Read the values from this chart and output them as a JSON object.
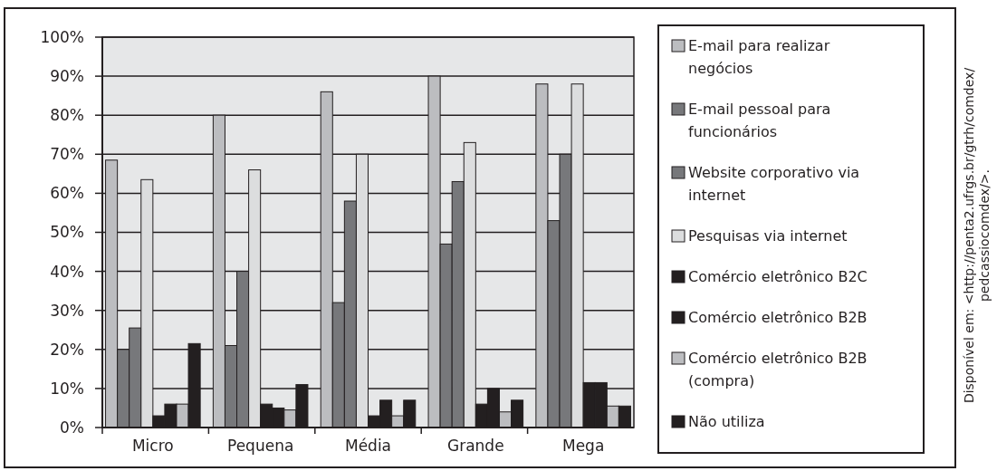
{
  "chart_data": {
    "type": "bar",
    "categories": [
      "Micro",
      "Pequena",
      "Média",
      "Grande",
      "Mega"
    ],
    "series": [
      {
        "name": "E-mail para realizar negócios",
        "color": "#bcbdc0",
        "values": [
          68.5,
          80,
          86,
          90,
          88
        ]
      },
      {
        "name": "E-mail pessoal para funcionários",
        "color": "#77787b",
        "values": [
          20,
          21,
          32,
          47,
          53
        ]
      },
      {
        "name": "Website corporativo via internet",
        "color": "#77787b",
        "values": [
          25.5,
          40,
          58,
          63,
          70
        ]
      },
      {
        "name": "Pesquisas via internet",
        "color": "#dcddde",
        "values": [
          63.5,
          66,
          70,
          73,
          88
        ]
      },
      {
        "name": "Comércio eletrônico B2C",
        "color": "#231f20",
        "values": [
          3,
          6,
          3,
          6,
          11.5
        ]
      },
      {
        "name": "Comércio eletrônico B2B",
        "color": "#231f20",
        "values": [
          6,
          5,
          7,
          10,
          11.5
        ]
      },
      {
        "name": "Comércio eletrônico B2B (compra)",
        "color": "#bcbdc0",
        "values": [
          6,
          4.5,
          3,
          4,
          5.5
        ]
      },
      {
        "name": "Não utiliza",
        "color": "#231f20",
        "values": [
          21.5,
          11,
          7,
          7,
          5.5
        ]
      }
    ],
    "ylim": [
      0,
      100
    ],
    "yticks": [
      {
        "value": 0,
        "label": "0%"
      },
      {
        "value": 10,
        "label": "10%"
      },
      {
        "value": 20,
        "label": "20%"
      },
      {
        "value": 30,
        "label": "30%"
      },
      {
        "value": 40,
        "label": "40%"
      },
      {
        "value": 50,
        "label": "50%"
      },
      {
        "value": 60,
        "label": "60%"
      },
      {
        "value": 70,
        "label": "70%"
      },
      {
        "value": 80,
        "label": "80%"
      },
      {
        "value": 90,
        "label": "90%"
      },
      {
        "value": 100,
        "label": "100%"
      }
    ],
    "grid": "y",
    "legend": "right",
    "annotations": [
      "Disponível em: <http://penta2.ufrgs.br/gtrh/comdex/ pedcassiocomdex/>."
    ]
  }
}
